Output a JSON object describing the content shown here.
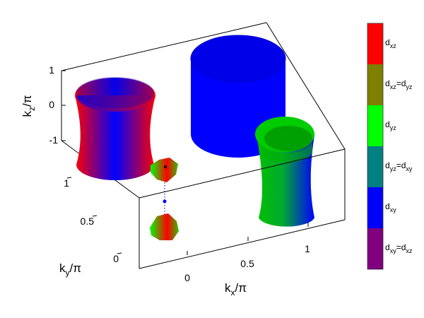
{
  "chart_data": {
    "type": "3d-surface",
    "x_axis": {
      "label_main": "k",
      "label_sub": "x",
      "label_tail": "/π",
      "ticks": [
        "0",
        "0.5",
        "1"
      ]
    },
    "y_axis": {
      "label_main": "k",
      "label_sub": "y",
      "label_tail": "/π",
      "ticks": [
        "0",
        "0.5",
        "1"
      ]
    },
    "z_axis": {
      "label_main": "k",
      "label_sub": "z",
      "label_tail": "/π",
      "ticks": [
        "-1",
        "0",
        "1"
      ]
    },
    "colorbar": {
      "entries": [
        {
          "parts": [
            [
              "d",
              ""
            ],
            [
              "xz",
              "sub"
            ]
          ],
          "color": "#ff0000"
        },
        {
          "parts": [
            [
              "d",
              ""
            ],
            [
              "xz",
              "sub"
            ],
            [
              "=d",
              ""
            ],
            [
              "yz",
              "sub"
            ]
          ],
          "color": "#7f7f00"
        },
        {
          "parts": [
            [
              "d",
              ""
            ],
            [
              "yz",
              "sub"
            ]
          ],
          "color": "#00ff00"
        },
        {
          "parts": [
            [
              "d",
              ""
            ],
            [
              "yz",
              "sub"
            ],
            [
              "=d",
              ""
            ],
            [
              "xy",
              "sub"
            ]
          ],
          "color": "#008080"
        },
        {
          "parts": [
            [
              "d",
              ""
            ],
            [
              "xy",
              "sub"
            ]
          ],
          "color": "#0000ff"
        },
        {
          "parts": [
            [
              "d",
              ""
            ],
            [
              "xy",
              "sub"
            ],
            [
              "=d",
              ""
            ],
            [
              "xz",
              "sub"
            ]
          ],
          "color": "#800080"
        }
      ]
    },
    "surfaces": [
      {
        "name": "hourglass-pocket",
        "colors": [
          "#ff0000",
          "#0000ff",
          "#ff0000"
        ]
      },
      {
        "name": "large-cylinder-pocket",
        "colors": [
          "#0000ff",
          "#0000ff"
        ]
      },
      {
        "name": "elliptical-pocket",
        "colors": [
          "#00ff00",
          "#0000ff"
        ]
      },
      {
        "name": "small-pocket-top",
        "colors": [
          "#00ff00",
          "#ff0000"
        ]
      },
      {
        "name": "small-pocket-bottom",
        "colors": [
          "#00ff00",
          "#ff0000"
        ]
      }
    ]
  }
}
